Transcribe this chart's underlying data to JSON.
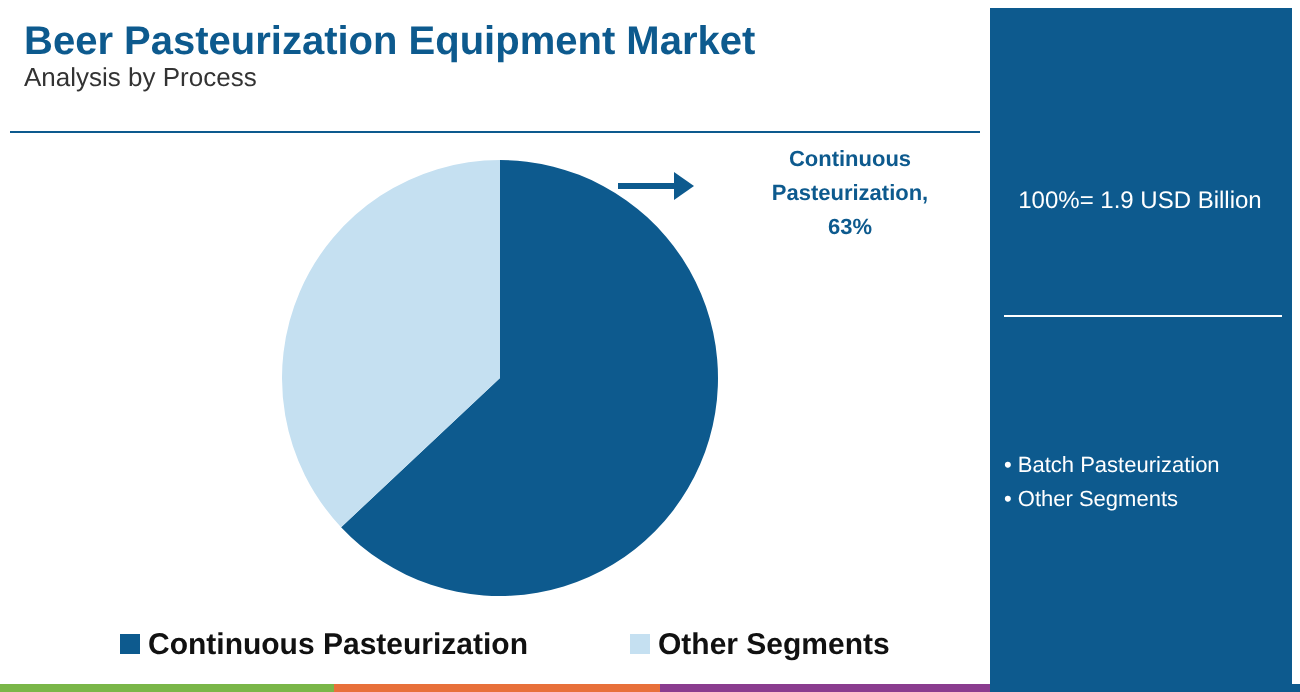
{
  "chart_data": {
    "type": "pie",
    "title": "Beer Pasteurization Equipment Market",
    "subtitle": "Analysis by Process",
    "categories": [
      "Continuous Pasteurization",
      "Other Segments"
    ],
    "values": [
      63,
      37
    ],
    "colors": [
      "#0d5a8e",
      "#c5e0f1"
    ],
    "legend": "bottom",
    "annotations": [
      "Continuous Pasteurization, 63%",
      "100%= 1.9 USD Billion",
      "• Batch Pasteurization",
      "• Other Segments"
    ]
  }
}
